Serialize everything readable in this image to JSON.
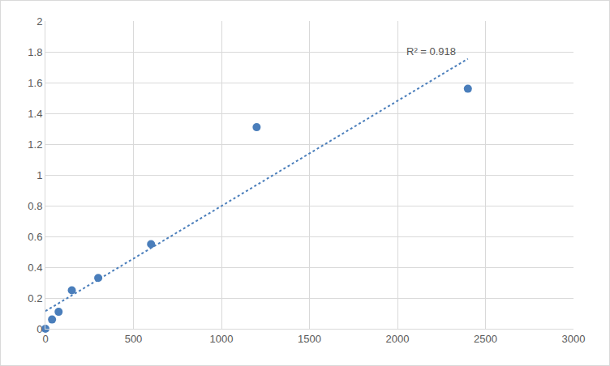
{
  "chart_data": {
    "type": "scatter",
    "x": [
      0,
      37.5,
      75,
      150,
      300,
      600,
      1200,
      2400
    ],
    "series": [
      {
        "color": "#4a7ebb",
        "marker": "circle",
        "values": [
          0,
          0.06,
          0.11,
          0.25,
          0.33,
          0.55,
          1.31,
          1.56
        ]
      },
      {
        "type": "linear_fit",
        "line_style": "dotted",
        "color": "#4a7ebb"
      }
    ],
    "annotations": [
      {
        "text": "R² = 0.918"
      }
    ],
    "xlim": [
      0,
      3000
    ],
    "xticks": [
      0,
      500,
      1000,
      1500,
      2000,
      2500,
      3000
    ],
    "ylim": [
      0,
      2
    ],
    "yticks": [
      0,
      0.2,
      0.4,
      0.6,
      0.8,
      1,
      1.2,
      1.4,
      1.6,
      1.8,
      2
    ],
    "grid": true
  }
}
